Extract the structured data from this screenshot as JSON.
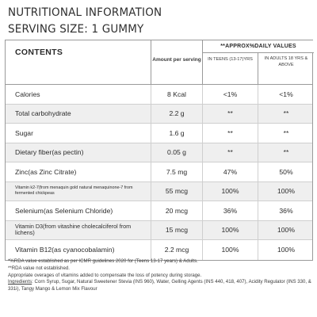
{
  "header": {
    "line1": "NUTRITIONAL INFORMATION",
    "line2": "SERVING SIZE: 1 GUMMY"
  },
  "table_header": {
    "contents": "CONTENTS",
    "amount": "Amount per serving",
    "approx": "**APPROX%DAILY VALUES",
    "teens": "IN TEENS (13-17)YRS",
    "adults": "IN ADULTS 18 YRS & ABOVE"
  },
  "rows": [
    {
      "name": "Calories",
      "amount": "8 Kcal",
      "teens": "<1%",
      "adults": "<1%"
    },
    {
      "name": "Total carbohydrate",
      "amount": "2.2 g",
      "teens": "**",
      "adults": "**"
    },
    {
      "name": "Sugar",
      "amount": "1.6 g",
      "teens": "**",
      "adults": "**"
    },
    {
      "name": "Dietary fiber(as pectin)",
      "amount": "0.05 g",
      "teens": "**",
      "adults": "**"
    },
    {
      "name": "Zinc(as Zinc Citrate)",
      "amount": "7.5 mg",
      "teens": "47%",
      "adults": "50%"
    },
    {
      "name": "Vitamin k2-7(from menaquin gold natural menaquinone-7 from fermented chickpeas",
      "amount": "55 mcg",
      "teens": "100%",
      "adults": "100%"
    },
    {
      "name": "Selenium(as Selenium Chloride)",
      "amount": "20 mcg",
      "teens": "36%",
      "adults": "36%"
    },
    {
      "name": "Vitamin D3(from vitashine cholecalciferol from lichens)",
      "amount": "15 mcg",
      "teens": "100%",
      "adults": "100%"
    },
    {
      "name": "Vitamin B12(as cyanocobalamin)",
      "amount": "2.2 mcg",
      "teens": "100%",
      "adults": "100%"
    }
  ],
  "footer": {
    "note1": "*%RDA value established as per ICMR guidelines 2020 for (Teens 13-17 years) & Adults.",
    "note2": "**RDA value not established.",
    "note3": "Appropriate overages of vitamins added to compensate the loss of potency during storage.",
    "ingredients_label": "Ingredients",
    "ingredients_text": ": Corn Syrup, Sugar, Natural Sweetener Stevia (INS 960), Water, Gelling Agents (INS 440, 418, 407), Acidity Regulator (INS 330, & 331i), Tangy Mango & Lemon Mix Flavour"
  }
}
